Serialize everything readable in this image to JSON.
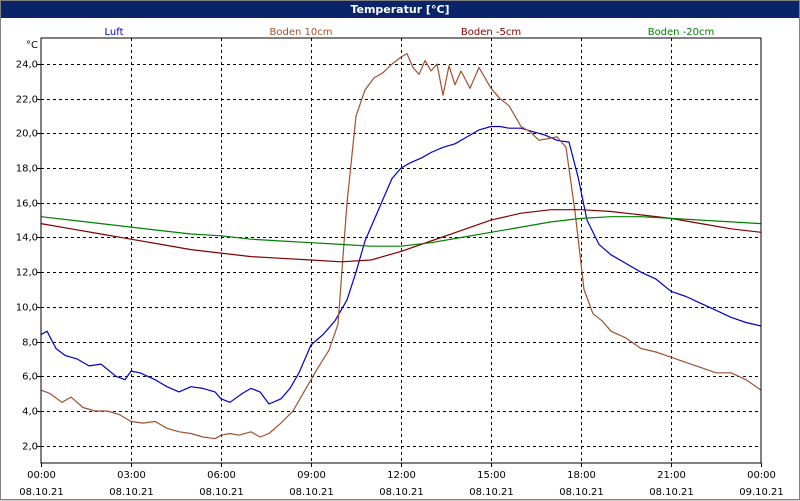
{
  "window": {
    "title": "Temperatur [°C]"
  },
  "chart_data": {
    "type": "line",
    "title": "Temperatur [°C]",
    "ylabel": "°C",
    "xlabel": "",
    "ylim": [
      1.0,
      25.5
    ],
    "xlim": [
      0,
      24
    ],
    "grid": true,
    "legend_position": "top",
    "yticks": [
      "2,0",
      "4,0",
      "6,0",
      "8,0",
      "10,0",
      "12,0",
      "14,0",
      "16,0",
      "18,0",
      "20,0",
      "22,0",
      "24,0"
    ],
    "ytick_values": [
      2,
      4,
      6,
      8,
      10,
      12,
      14,
      16,
      18,
      20,
      22,
      24
    ],
    "xticks": [
      {
        "time": "00:00",
        "date": "08.10.21",
        "h": 0
      },
      {
        "time": "03:00",
        "date": "08.10.21",
        "h": 3
      },
      {
        "time": "06:00",
        "date": "08.10.21",
        "h": 6
      },
      {
        "time": "09:00",
        "date": "08.10.21",
        "h": 9
      },
      {
        "time": "12:00",
        "date": "08.10.21",
        "h": 12
      },
      {
        "time": "15:00",
        "date": "08.10.21",
        "h": 15
      },
      {
        "time": "18:00",
        "date": "08.10.21",
        "h": 18
      },
      {
        "time": "21:00",
        "date": "08.10.21",
        "h": 21
      },
      {
        "time": "00:00",
        "date": "09.10.21",
        "h": 24
      }
    ],
    "series": [
      {
        "name": "Luft",
        "color": "#0000cc",
        "x": [
          0,
          0.2,
          0.5,
          0.8,
          1.2,
          1.6,
          2.0,
          2.5,
          2.8,
          3.0,
          3.3,
          3.8,
          4.2,
          4.6,
          5.0,
          5.4,
          5.8,
          6.0,
          6.3,
          6.7,
          7.0,
          7.3,
          7.6,
          8.0,
          8.3,
          8.6,
          9.0,
          9.4,
          9.8,
          10.2,
          10.5,
          10.8,
          11.1,
          11.4,
          11.7,
          12.0,
          12.3,
          12.7,
          13.0,
          13.4,
          13.8,
          14.2,
          14.6,
          15.0,
          15.3,
          15.6,
          16.0,
          16.4,
          16.8,
          17.2,
          17.6,
          17.9,
          18.2,
          18.6,
          19.0,
          19.5,
          20.0,
          20.5,
          21.0,
          21.5,
          22.0,
          22.5,
          23.0,
          23.5,
          24.0
        ],
        "y": [
          8.4,
          8.6,
          7.6,
          7.2,
          7.0,
          6.6,
          6.7,
          6.0,
          5.8,
          6.3,
          6.2,
          5.8,
          5.4,
          5.1,
          5.4,
          5.3,
          5.1,
          4.7,
          4.5,
          5.0,
          5.3,
          5.1,
          4.4,
          4.7,
          5.3,
          6.2,
          7.8,
          8.4,
          9.2,
          10.4,
          12.0,
          13.8,
          15.0,
          16.2,
          17.4,
          18.0,
          18.3,
          18.6,
          18.9,
          19.2,
          19.4,
          19.8,
          20.2,
          20.4,
          20.4,
          20.3,
          20.3,
          20.1,
          19.9,
          19.6,
          19.5,
          17.5,
          15.0,
          13.6,
          13.0,
          12.5,
          12.0,
          11.6,
          10.9,
          10.6,
          10.2,
          9.8,
          9.4,
          9.1,
          8.9
        ]
      },
      {
        "name": "Boden 10cm",
        "color": "#a0522d",
        "x": [
          0,
          0.3,
          0.7,
          1.0,
          1.4,
          1.8,
          2.2,
          2.6,
          3.0,
          3.4,
          3.8,
          4.2,
          4.6,
          5.0,
          5.4,
          5.8,
          6.0,
          6.3,
          6.6,
          7.0,
          7.3,
          7.6,
          8.0,
          8.4,
          8.8,
          9.2,
          9.6,
          9.9,
          10.2,
          10.5,
          10.8,
          11.1,
          11.4,
          11.7,
          12.0,
          12.2,
          12.4,
          12.6,
          12.8,
          13.0,
          13.2,
          13.4,
          13.6,
          13.8,
          14.0,
          14.3,
          14.6,
          15.0,
          15.3,
          15.6,
          16.0,
          16.3,
          16.6,
          16.9,
          17.2,
          17.5,
          17.8,
          18.1,
          18.4,
          18.7,
          19.0,
          19.5,
          20.0,
          20.5,
          21.0,
          21.5,
          22.0,
          22.5,
          23.0,
          23.5,
          24.0
        ],
        "y": [
          5.2,
          5.0,
          4.5,
          4.8,
          4.2,
          4.0,
          4.0,
          3.8,
          3.4,
          3.3,
          3.4,
          3.0,
          2.8,
          2.7,
          2.5,
          2.4,
          2.6,
          2.7,
          2.6,
          2.8,
          2.5,
          2.7,
          3.3,
          4.0,
          5.2,
          6.4,
          7.5,
          9.0,
          16.0,
          21.0,
          22.5,
          23.2,
          23.5,
          24.0,
          24.4,
          24.6,
          23.8,
          23.4,
          24.2,
          23.6,
          24.0,
          22.2,
          23.9,
          22.8,
          23.6,
          22.6,
          23.8,
          22.6,
          22.0,
          21.6,
          20.4,
          20.1,
          19.6,
          19.7,
          19.8,
          19.2,
          15.5,
          11.0,
          9.6,
          9.2,
          8.6,
          8.2,
          7.6,
          7.4,
          7.1,
          6.8,
          6.5,
          6.2,
          6.2,
          5.8,
          5.2
        ]
      },
      {
        "name": "Boden -5cm",
        "color": "#800000",
        "x": [
          0,
          1,
          2,
          3,
          4,
          5,
          6,
          7,
          8,
          9,
          10,
          11,
          12,
          13,
          14,
          15,
          16,
          17,
          18,
          19,
          20,
          21,
          22,
          23,
          24
        ],
        "y": [
          14.8,
          14.5,
          14.2,
          13.9,
          13.6,
          13.3,
          13.1,
          12.9,
          12.8,
          12.7,
          12.6,
          12.7,
          13.2,
          13.8,
          14.4,
          15.0,
          15.4,
          15.6,
          15.6,
          15.5,
          15.3,
          15.1,
          14.8,
          14.5,
          14.3
        ]
      },
      {
        "name": "Boden -20cm",
        "color": "#008000",
        "x": [
          0,
          1,
          2,
          3,
          4,
          5,
          6,
          7,
          8,
          9,
          10,
          11,
          12,
          13,
          14,
          15,
          16,
          17,
          18,
          19,
          20,
          21,
          22,
          23,
          24
        ],
        "y": [
          15.2,
          15.0,
          14.8,
          14.6,
          14.4,
          14.2,
          14.1,
          13.9,
          13.8,
          13.7,
          13.6,
          13.5,
          13.5,
          13.7,
          14.0,
          14.3,
          14.6,
          14.9,
          15.1,
          15.2,
          15.2,
          15.1,
          15.0,
          14.9,
          14.8
        ]
      }
    ]
  }
}
